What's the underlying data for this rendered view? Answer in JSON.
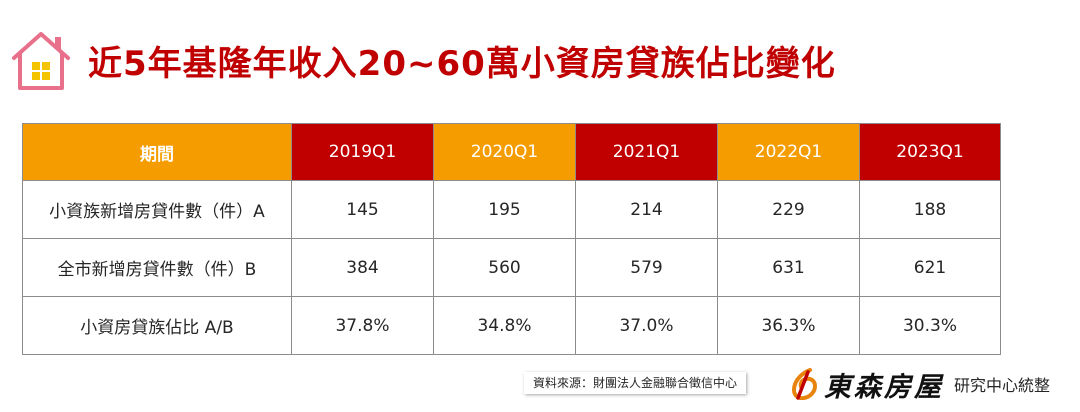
{
  "title": "近5年基隆年收入20~60萬小資房貸族佔比變化",
  "table": {
    "header_label": "期間",
    "periods": [
      "2019Q1",
      "2020Q1",
      "2021Q1",
      "2022Q1",
      "2023Q1"
    ],
    "header_colors": [
      "#c00000",
      "#f59d00",
      "#c00000",
      "#f59d00",
      "#c00000"
    ],
    "rows": [
      {
        "label": "小資族新增房貸件數（件）A",
        "values": [
          "145",
          "195",
          "214",
          "229",
          "188"
        ]
      },
      {
        "label": "全市新增房貸件數（件）B",
        "values": [
          "384",
          "560",
          "579",
          "631",
          "621"
        ]
      },
      {
        "label": "小資房貸族佔比 A/B",
        "values": [
          "37.8%",
          "34.8%",
          "37.0%",
          "36.3%",
          "30.3%"
        ]
      }
    ]
  },
  "source": "資料來源：財團法人金融聯合徵信中心",
  "brand": {
    "name": "東森房屋",
    "sub": "研究中心統整"
  },
  "colors": {
    "accent_red": "#c00000",
    "accent_orange": "#f59d00",
    "house_pink": "#e8708a",
    "window_yellow": "#f5c400"
  }
}
